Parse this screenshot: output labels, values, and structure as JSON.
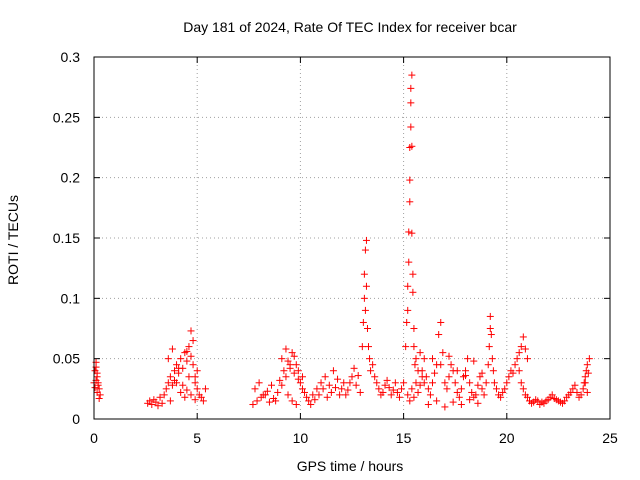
{
  "chart_data": {
    "type": "scatter",
    "title": "Day 181 of 2024, Rate Of TEC Index for receiver bcar",
    "xlabel": "GPS time / hours",
    "ylabel": "ROTI / TECUs",
    "xlim": [
      0,
      25
    ],
    "ylim": [
      0,
      0.3
    ],
    "xticks": [
      0,
      5,
      10,
      15,
      20,
      25
    ],
    "yticks": [
      0,
      0.05,
      0.1,
      0.15,
      0.2,
      0.25,
      0.3
    ],
    "xtick_labels": [
      "0",
      "5",
      "10",
      "15",
      "20",
      "25"
    ],
    "ytick_labels": [
      "0",
      "0.05",
      "0.1",
      "0.15",
      "0.2",
      "0.25",
      "0.3"
    ],
    "grid": true,
    "marker": "+",
    "color": "#ff0000",
    "series": [
      {
        "name": "ROTI",
        "x": [
          0.0,
          0.05,
          0.1,
          0.15,
          0.2,
          0.25,
          0.3,
          0.05,
          0.1,
          0.15,
          0.2,
          0.25,
          0.1,
          0.15,
          2.6,
          2.7,
          2.8,
          2.9,
          3.0,
          3.1,
          3.2,
          3.3,
          3.4,
          3.5,
          3.6,
          3.7,
          3.8,
          3.9,
          4.0,
          4.1,
          4.2,
          4.3,
          4.4,
          4.5,
          4.6,
          4.7,
          4.8,
          4.9,
          5.0,
          5.1,
          5.2,
          5.3,
          5.4,
          3.6,
          3.8,
          4.0,
          4.2,
          4.4,
          4.6,
          4.8,
          5.0,
          3.7,
          3.9,
          4.1,
          4.3,
          4.5,
          4.7,
          4.9,
          4.5,
          4.7,
          4.9,
          7.7,
          7.9,
          8.1,
          8.3,
          8.5,
          8.7,
          8.9,
          9.1,
          9.3,
          9.5,
          9.7,
          9.9,
          10.1,
          10.3,
          10.5,
          10.7,
          10.9,
          11.1,
          11.3,
          11.5,
          11.7,
          11.9,
          12.1,
          12.3,
          12.5,
          12.7,
          12.9,
          7.8,
          8.0,
          8.2,
          8.4,
          8.6,
          8.8,
          9.0,
          9.2,
          9.4,
          9.6,
          9.8,
          10.0,
          10.2,
          10.4,
          10.6,
          10.8,
          11.0,
          11.2,
          11.4,
          11.6,
          11.8,
          12.0,
          12.2,
          12.4,
          12.6,
          12.8,
          9.1,
          9.3,
          9.5,
          9.7,
          9.9,
          10.1,
          9.4,
          9.6,
          9.8,
          13.0,
          13.05,
          13.1,
          13.1,
          13.15,
          13.15,
          13.2,
          13.2,
          13.25,
          13.3,
          13.35,
          13.4,
          13.5,
          13.6,
          13.7,
          13.8,
          13.9,
          14.0,
          14.1,
          14.2,
          14.3,
          14.4,
          14.5,
          14.6,
          14.7,
          14.8,
          14.9,
          15.0,
          15.1,
          15.15,
          15.2,
          15.2,
          15.25,
          15.25,
          15.3,
          15.3,
          15.3,
          15.35,
          15.35,
          15.35,
          15.4,
          15.4,
          15.4,
          15.45,
          15.45,
          15.5,
          15.5,
          15.55,
          15.6,
          15.7,
          15.8,
          15.9,
          16.0,
          15.2,
          15.3,
          15.4,
          15.5,
          15.6,
          15.7,
          15.8,
          15.9,
          16.0,
          16.1,
          16.2,
          16.3,
          16.4,
          16.5,
          16.6,
          16.7,
          16.8,
          16.9,
          17.0,
          17.1,
          17.2,
          17.3,
          17.4,
          17.5,
          17.6,
          17.7,
          17.8,
          17.9,
          18.0,
          18.1,
          18.2,
          18.3,
          18.4,
          18.5,
          18.6,
          18.7,
          18.8,
          18.9,
          19.0,
          16.2,
          16.6,
          17.0,
          17.4,
          17.8,
          18.2,
          18.6,
          16.4,
          16.8,
          17.2,
          17.6,
          18.0,
          18.4,
          18.8,
          19.1,
          19.15,
          19.2,
          19.2,
          19.25,
          19.3,
          19.35,
          19.4,
          19.5,
          19.6,
          19.7,
          19.8,
          19.9,
          20.0,
          20.1,
          20.2,
          20.3,
          20.4,
          20.5,
          20.6,
          20.7,
          20.8,
          20.9,
          21.0,
          21.1,
          21.2,
          21.3,
          21.4,
          21.5,
          21.6,
          21.7,
          21.8,
          21.9,
          22.0,
          22.1,
          22.2,
          22.3,
          22.4,
          22.5,
          22.6,
          22.7,
          22.8,
          22.9,
          23.0,
          23.1,
          23.2,
          23.3,
          23.4,
          23.5,
          23.6,
          23.7,
          23.8,
          23.9,
          20.6,
          20.7,
          20.8,
          20.9,
          21.0,
          23.75,
          23.8,
          23.85,
          23.9,
          23.95,
          24.0
        ],
        "y": [
          0.03,
          0.04,
          0.043,
          0.035,
          0.028,
          0.025,
          0.02,
          0.026,
          0.032,
          0.038,
          0.03,
          0.017,
          0.047,
          0.022,
          0.013,
          0.015,
          0.012,
          0.016,
          0.014,
          0.011,
          0.018,
          0.013,
          0.02,
          0.025,
          0.03,
          0.035,
          0.028,
          0.04,
          0.045,
          0.038,
          0.05,
          0.042,
          0.055,
          0.048,
          0.06,
          0.052,
          0.045,
          0.035,
          0.025,
          0.02,
          0.018,
          0.015,
          0.025,
          0.05,
          0.058,
          0.03,
          0.022,
          0.018,
          0.035,
          0.065,
          0.04,
          0.015,
          0.032,
          0.042,
          0.028,
          0.056,
          0.073,
          0.03,
          0.024,
          0.02,
          0.016,
          0.012,
          0.015,
          0.018,
          0.02,
          0.014,
          0.017,
          0.022,
          0.028,
          0.035,
          0.042,
          0.038,
          0.033,
          0.025,
          0.018,
          0.012,
          0.016,
          0.02,
          0.025,
          0.018,
          0.022,
          0.026,
          0.02,
          0.03,
          0.024,
          0.035,
          0.028,
          0.022,
          0.025,
          0.03,
          0.02,
          0.023,
          0.028,
          0.015,
          0.032,
          0.04,
          0.048,
          0.055,
          0.045,
          0.03,
          0.022,
          0.015,
          0.02,
          0.025,
          0.03,
          0.035,
          0.028,
          0.04,
          0.033,
          0.025,
          0.02,
          0.03,
          0.042,
          0.036,
          0.05,
          0.058,
          0.045,
          0.052,
          0.04,
          0.035,
          0.02,
          0.015,
          0.012,
          0.06,
          0.08,
          0.1,
          0.12,
          0.09,
          0.14,
          0.148,
          0.11,
          0.075,
          0.06,
          0.05,
          0.04,
          0.045,
          0.035,
          0.03,
          0.025,
          0.02,
          0.022,
          0.028,
          0.032,
          0.026,
          0.02,
          0.024,
          0.03,
          0.022,
          0.018,
          0.025,
          0.03,
          0.06,
          0.08,
          0.11,
          0.09,
          0.13,
          0.155,
          0.18,
          0.198,
          0.225,
          0.242,
          0.262,
          0.274,
          0.285,
          0.226,
          0.154,
          0.105,
          0.12,
          0.075,
          0.06,
          0.045,
          0.05,
          0.04,
          0.055,
          0.035,
          0.03,
          0.02,
          0.015,
          0.025,
          0.018,
          0.03,
          0.022,
          0.028,
          0.04,
          0.05,
          0.035,
          0.025,
          0.02,
          0.03,
          0.038,
          0.045,
          0.07,
          0.08,
          0.055,
          0.03,
          0.025,
          0.035,
          0.045,
          0.04,
          0.03,
          0.022,
          0.018,
          0.025,
          0.035,
          0.04,
          0.05,
          0.03,
          0.022,
          0.018,
          0.02,
          0.028,
          0.035,
          0.025,
          0.02,
          0.03,
          0.012,
          0.015,
          0.01,
          0.014,
          0.012,
          0.016,
          0.013,
          0.05,
          0.045,
          0.052,
          0.04,
          0.036,
          0.048,
          0.038,
          0.045,
          0.06,
          0.075,
          0.085,
          0.07,
          0.05,
          0.04,
          0.03,
          0.025,
          0.02,
          0.018,
          0.022,
          0.025,
          0.03,
          0.035,
          0.04,
          0.038,
          0.045,
          0.05,
          0.04,
          0.03,
          0.025,
          0.02,
          0.018,
          0.015,
          0.013,
          0.014,
          0.016,
          0.015,
          0.012,
          0.014,
          0.013,
          0.015,
          0.016,
          0.018,
          0.02,
          0.017,
          0.016,
          0.015,
          0.014,
          0.013,
          0.015,
          0.018,
          0.02,
          0.022,
          0.025,
          0.028,
          0.022,
          0.018,
          0.02,
          0.025,
          0.03,
          0.022,
          0.055,
          0.06,
          0.068,
          0.058,
          0.05,
          0.03,
          0.035,
          0.04,
          0.045,
          0.038,
          0.05
        ]
      }
    ]
  }
}
